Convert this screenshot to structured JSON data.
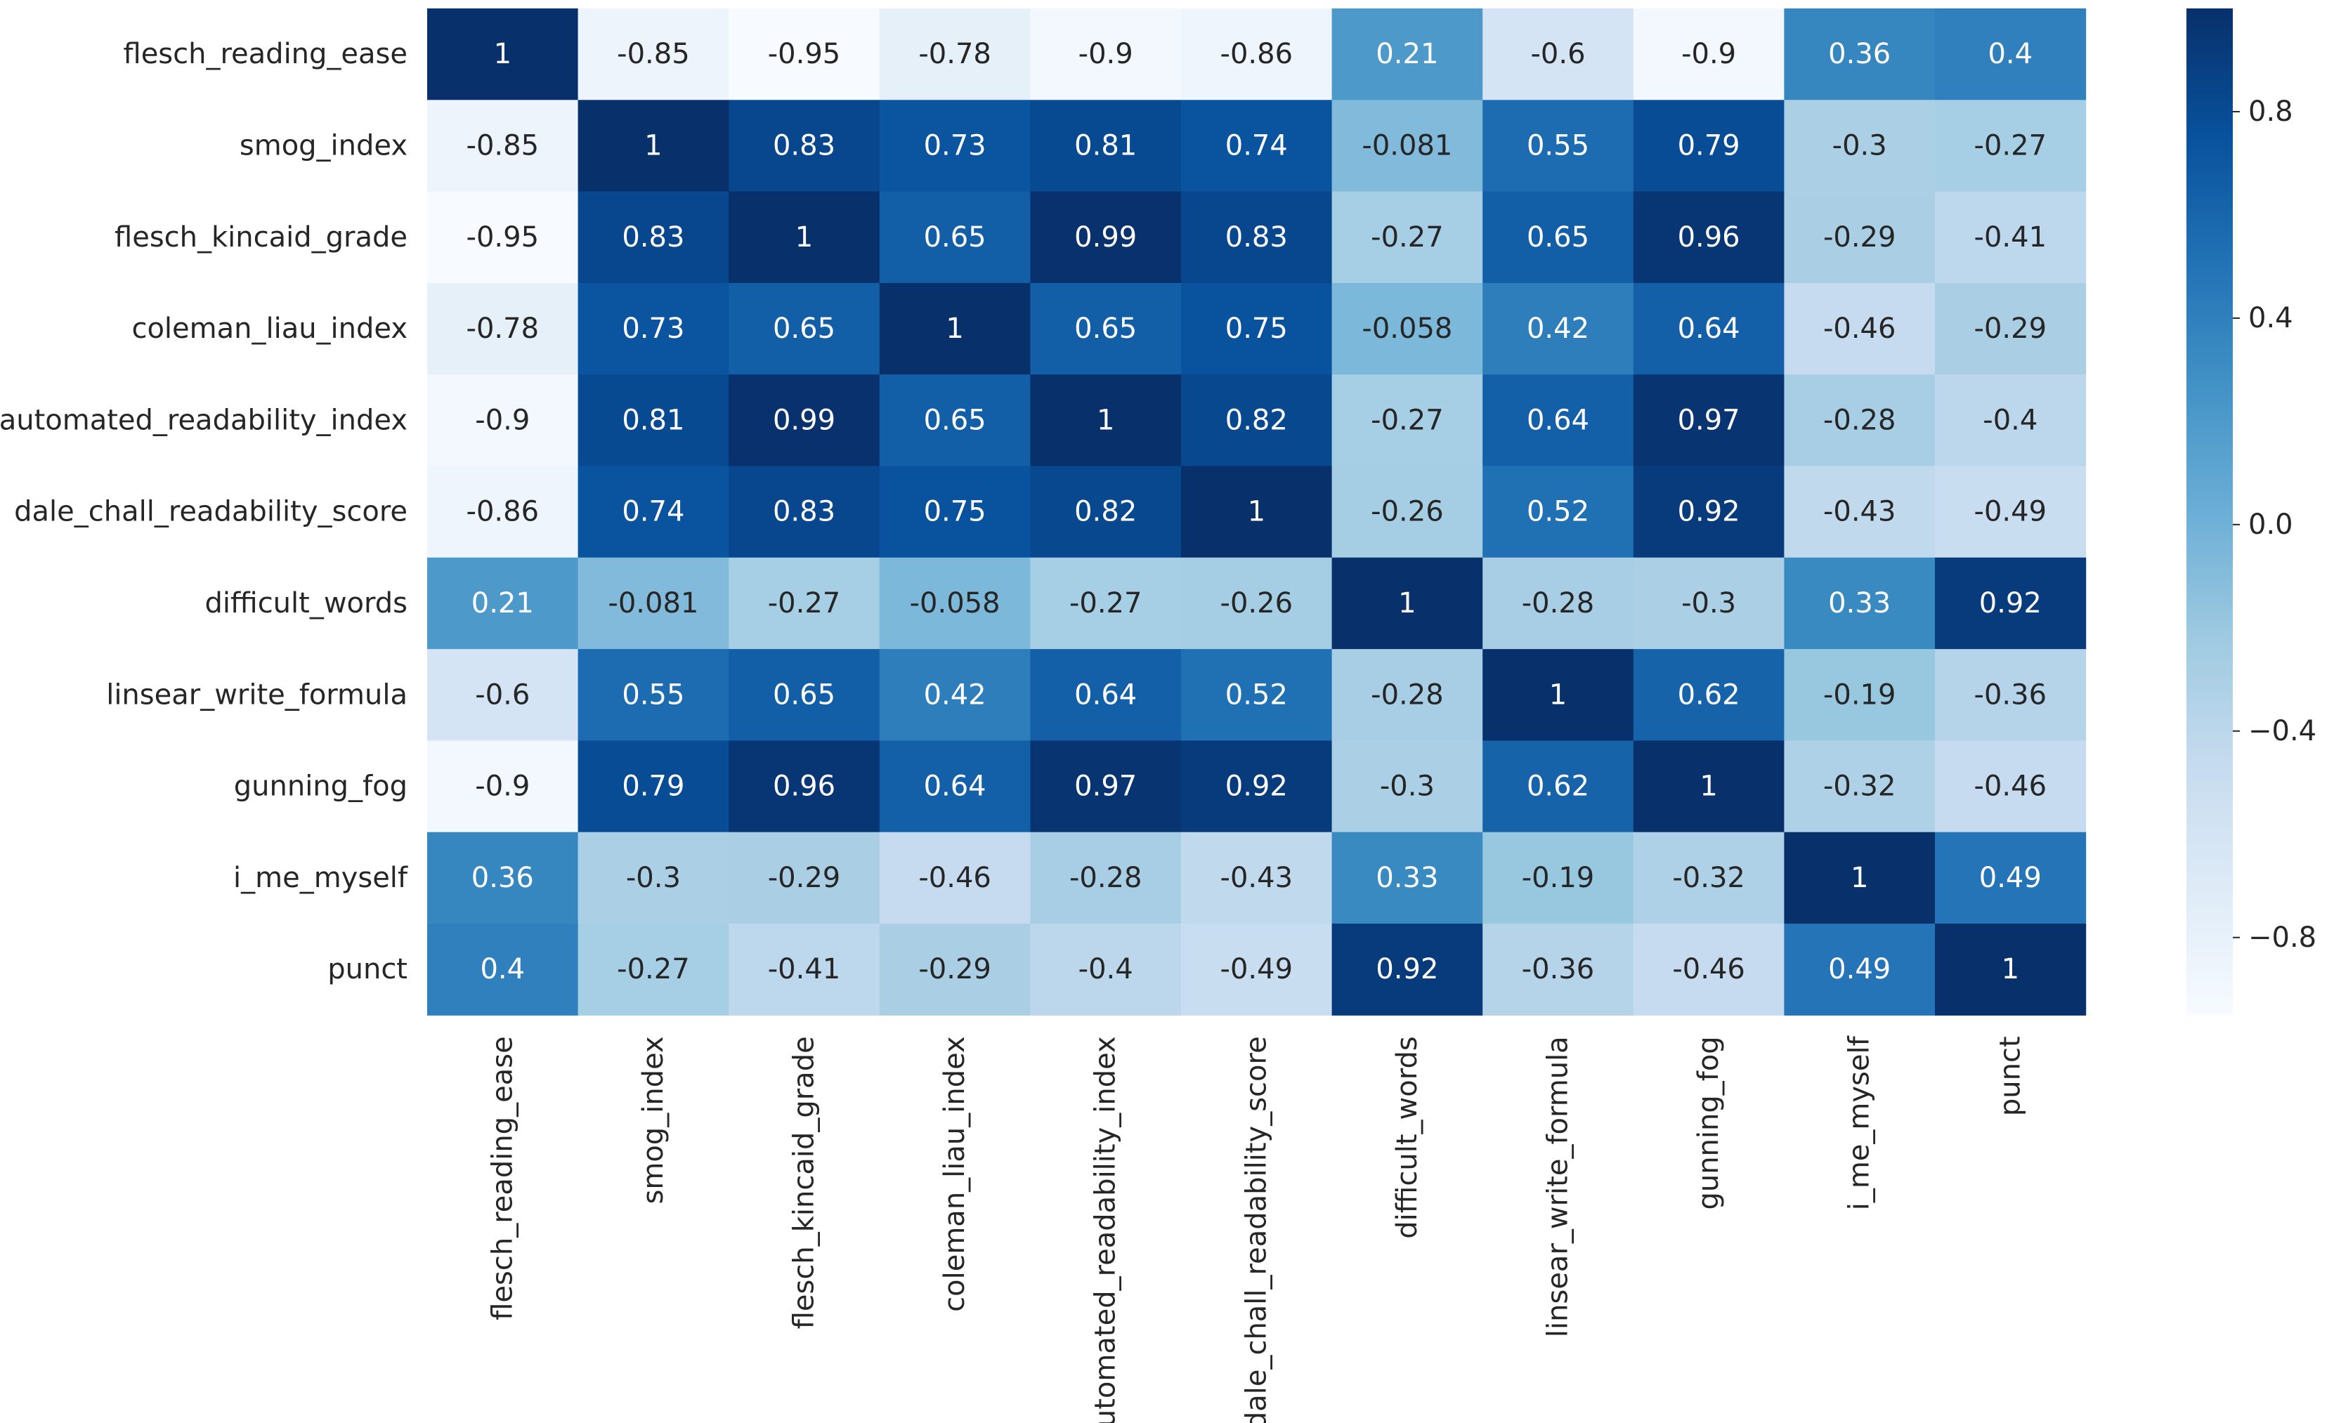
{
  "chart_data": {
    "type": "heatmap",
    "title": "",
    "xlabel": "",
    "ylabel": "",
    "labels": [
      "flesch_reading_ease",
      "smog_index",
      "flesch_kincaid_grade",
      "coleman_liau_index",
      "automated_readability_index",
      "dale_chall_readability_score",
      "difficult_words",
      "linsear_write_formula",
      "gunning_fog",
      "i_me_myself",
      "punct"
    ],
    "values": [
      [
        1,
        -0.85,
        -0.95,
        -0.78,
        -0.9,
        -0.86,
        0.21,
        -0.6,
        -0.9,
        0.36,
        0.4
      ],
      [
        -0.85,
        1,
        0.83,
        0.73,
        0.81,
        0.74,
        -0.081,
        0.55,
        0.79,
        -0.3,
        -0.27
      ],
      [
        -0.95,
        0.83,
        1,
        0.65,
        0.99,
        0.83,
        -0.27,
        0.65,
        0.96,
        -0.29,
        -0.41
      ],
      [
        -0.78,
        0.73,
        0.65,
        1,
        0.65,
        0.75,
        -0.058,
        0.42,
        0.64,
        -0.46,
        -0.29
      ],
      [
        -0.9,
        0.81,
        0.99,
        0.65,
        1,
        0.82,
        -0.27,
        0.64,
        0.97,
        -0.28,
        -0.4
      ],
      [
        -0.86,
        0.74,
        0.83,
        0.75,
        0.82,
        1,
        -0.26,
        0.52,
        0.92,
        -0.43,
        -0.49
      ],
      [
        0.21,
        -0.081,
        -0.27,
        -0.058,
        -0.27,
        -0.26,
        1,
        -0.28,
        -0.3,
        0.33,
        0.92
      ],
      [
        -0.6,
        0.55,
        0.65,
        0.42,
        0.64,
        0.52,
        -0.28,
        1,
        0.62,
        -0.19,
        -0.36
      ],
      [
        -0.9,
        0.79,
        0.96,
        0.64,
        0.97,
        0.92,
        -0.3,
        0.62,
        1,
        -0.32,
        -0.46
      ],
      [
        0.36,
        -0.3,
        -0.29,
        -0.46,
        -0.28,
        -0.43,
        0.33,
        -0.19,
        -0.32,
        1,
        0.49
      ],
      [
        0.4,
        -0.27,
        -0.41,
        -0.29,
        -0.4,
        -0.49,
        0.92,
        -0.36,
        -0.46,
        0.49,
        1
      ]
    ],
    "annotations": [
      [
        "1",
        "-0.85",
        "-0.95",
        "-0.78",
        "-0.9",
        "-0.86",
        "0.21",
        "-0.6",
        "-0.9",
        "0.36",
        "0.4"
      ],
      [
        "-0.85",
        "1",
        "0.83",
        "0.73",
        "0.81",
        "0.74",
        "-0.081",
        "0.55",
        "0.79",
        "-0.3",
        "-0.27"
      ],
      [
        "-0.95",
        "0.83",
        "1",
        "0.65",
        "0.99",
        "0.83",
        "-0.27",
        "0.65",
        "0.96",
        "-0.29",
        "-0.41"
      ],
      [
        "-0.78",
        "0.73",
        "0.65",
        "1",
        "0.65",
        "0.75",
        "-0.058",
        "0.42",
        "0.64",
        "-0.46",
        "-0.29"
      ],
      [
        "-0.9",
        "0.81",
        "0.99",
        "0.65",
        "1",
        "0.82",
        "-0.27",
        "0.64",
        "0.97",
        "-0.28",
        "-0.4"
      ],
      [
        "-0.86",
        "0.74",
        "0.83",
        "0.75",
        "0.82",
        "1",
        "-0.26",
        "0.52",
        "0.92",
        "-0.43",
        "-0.49"
      ],
      [
        "0.21",
        "-0.081",
        "-0.27",
        "-0.058",
        "-0.27",
        "-0.26",
        "1",
        "-0.28",
        "-0.3",
        "0.33",
        "0.92"
      ],
      [
        "-0.6",
        "0.55",
        "0.65",
        "0.42",
        "0.64",
        "0.52",
        "-0.28",
        "1",
        "0.62",
        "-0.19",
        "-0.36"
      ],
      [
        "-0.9",
        "0.79",
        "0.96",
        "0.64",
        "0.97",
        "0.92",
        "-0.3",
        "0.62",
        "1",
        "-0.32",
        "-0.46"
      ],
      [
        "0.36",
        "-0.3",
        "-0.29",
        "-0.46",
        "-0.28",
        "-0.43",
        "0.33",
        "-0.19",
        "-0.32",
        "1",
        "0.49"
      ],
      [
        "0.4",
        "-0.27",
        "-0.41",
        "-0.29",
        "-0.4",
        "-0.49",
        "0.92",
        "-0.36",
        "-0.46",
        "0.49",
        "1"
      ]
    ],
    "colormap": "Blues",
    "colormap_stops": [
      "#f7fbff",
      "#deebf7",
      "#c6dbef",
      "#9ecae1",
      "#6baed6",
      "#4292c6",
      "#2171b5",
      "#08519c",
      "#08306b"
    ],
    "vmin": -0.95,
    "vmax": 1,
    "colorbar_ticks": [
      0.8,
      0.4,
      0.0,
      -0.4,
      -0.8
    ],
    "colorbar_tick_labels": [
      "0.8",
      "0.4",
      "0.0",
      "−0.4",
      "−0.8"
    ],
    "grid": false,
    "legend": "colorbar-right"
  }
}
